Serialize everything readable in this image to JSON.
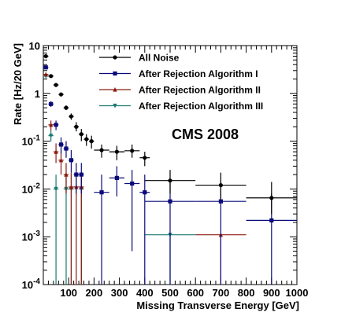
{
  "chart_data": {
    "type": "scatter",
    "title": "",
    "xlabel": "Missing Transverse Energy [GeV]",
    "ylabel": "Rate [Hz/20 GeV]",
    "xlim": [
      0,
      1000
    ],
    "ylim": [
      0.0001,
      10
    ],
    "yscale": "log",
    "grid": false,
    "legend_position": "top-center",
    "x_tick_labels": [
      "100",
      "200",
      "300",
      "400",
      "500",
      "600",
      "700",
      "800",
      "900",
      "1000"
    ],
    "y_tick_labels": [
      {
        "value": 0.0001,
        "base": "10",
        "exp": "-4"
      },
      {
        "value": 0.001,
        "base": "10",
        "exp": "-3"
      },
      {
        "value": 0.01,
        "base": "10",
        "exp": "-2"
      },
      {
        "value": 0.1,
        "base": "10",
        "exp": "-1"
      },
      {
        "value": 1,
        "base": "",
        "exp": "1"
      },
      {
        "value": 10,
        "base": "",
        "exp": "10"
      }
    ],
    "annotation": "CMS 2008",
    "series": [
      {
        "name": "All Noise",
        "color": "#000000",
        "marker": "circle",
        "points": [
          {
            "x": 10,
            "xerr": 10,
            "y": 6.0,
            "ylow": 6.0,
            "yhigh": 6.0
          },
          {
            "x": 30,
            "xerr": 10,
            "y": 2.3,
            "ylow": 2.3,
            "yhigh": 2.3
          },
          {
            "x": 50,
            "xerr": 10,
            "y": 1.5,
            "ylow": 1.45,
            "yhigh": 1.55
          },
          {
            "x": 70,
            "xerr": 10,
            "y": 0.95,
            "ylow": 0.88,
            "yhigh": 1.02
          },
          {
            "x": 90,
            "xerr": 10,
            "y": 0.5,
            "ylow": 0.45,
            "yhigh": 0.56
          },
          {
            "x": 110,
            "xerr": 10,
            "y": 0.33,
            "ylow": 0.28,
            "yhigh": 0.38
          },
          {
            "x": 130,
            "xerr": 10,
            "y": 0.2,
            "ylow": 0.16,
            "yhigh": 0.25
          },
          {
            "x": 150,
            "xerr": 10,
            "y": 0.14,
            "ylow": 0.1,
            "yhigh": 0.18
          },
          {
            "x": 170,
            "xerr": 10,
            "y": 0.11,
            "ylow": 0.08,
            "yhigh": 0.14
          },
          {
            "x": 190,
            "xerr": 10,
            "y": 0.1,
            "ylow": 0.07,
            "yhigh": 0.13
          },
          {
            "x": 230,
            "xerr": 30,
            "y": 0.065,
            "ylow": 0.045,
            "yhigh": 0.085
          },
          {
            "x": 290,
            "xerr": 30,
            "y": 0.06,
            "ylow": 0.04,
            "yhigh": 0.08
          },
          {
            "x": 350,
            "xerr": 30,
            "y": 0.063,
            "ylow": 0.045,
            "yhigh": 0.085
          },
          {
            "x": 400,
            "xerr": 20,
            "y": 0.045,
            "ylow": 0.03,
            "yhigh": 0.06
          },
          {
            "x": 500,
            "xerr": 100,
            "y": 0.015,
            "ylow": 0.008,
            "yhigh": 0.025
          },
          {
            "x": 700,
            "xerr": 100,
            "y": 0.012,
            "ylow": 0.006,
            "yhigh": 0.022
          },
          {
            "x": 900,
            "xerr": 100,
            "y": 0.0065,
            "ylow": 0.003,
            "yhigh": 0.014
          }
        ]
      },
      {
        "name": "After Rejection Algorithm I",
        "color": "#0a0a7a",
        "marker": "square",
        "points": [
          {
            "x": 10,
            "xerr": 10,
            "y": 3.5,
            "ylow": 3.3,
            "yhigh": 3.7
          },
          {
            "x": 30,
            "xerr": 10,
            "y": 0.6,
            "ylow": 0.52,
            "yhigh": 0.68
          },
          {
            "x": 50,
            "xerr": 10,
            "y": 0.22,
            "ylow": 0.17,
            "yhigh": 0.27
          },
          {
            "x": 70,
            "xerr": 10,
            "y": 0.085,
            "ylow": 0.055,
            "yhigh": 0.12
          },
          {
            "x": 90,
            "xerr": 10,
            "y": 0.07,
            "ylow": 0.045,
            "yhigh": 0.1
          },
          {
            "x": 110,
            "xerr": 10,
            "y": 0.04,
            "ylow": 0.022,
            "yhigh": 0.065
          },
          {
            "x": 130,
            "xerr": 10,
            "y": 0.02,
            "ylow": 0.008,
            "yhigh": 0.035
          },
          {
            "x": 150,
            "xerr": 10,
            "y": 0.02,
            "ylow": 0.008,
            "yhigh": 0.035
          },
          {
            "x": 230,
            "xerr": 30,
            "y": 0.0085,
            "ylow": 0.0001,
            "yhigh": 0.02
          },
          {
            "x": 290,
            "xerr": 30,
            "y": 0.017,
            "ylow": 0.007,
            "yhigh": 0.03
          },
          {
            "x": 350,
            "xerr": 30,
            "y": 0.013,
            "ylow": 0.0005,
            "yhigh": 0.025
          },
          {
            "x": 400,
            "xerr": 20,
            "y": 0.0085,
            "ylow": 0.0001,
            "yhigh": 0.02
          },
          {
            "x": 500,
            "xerr": 100,
            "y": 0.0055,
            "ylow": 0.0001,
            "yhigh": 0.015
          },
          {
            "x": 700,
            "xerr": 100,
            "y": 0.0055,
            "ylow": 0.0001,
            "yhigh": 0.015
          },
          {
            "x": 900,
            "xerr": 100,
            "y": 0.0022,
            "ylow": 0.0001,
            "yhigh": 0.008
          }
        ]
      },
      {
        "name": "After Rejection Algorithm II",
        "color": "#8c1a10",
        "marker": "triangle-up",
        "points": [
          {
            "x": 10,
            "xerr": 10,
            "y": 2.5,
            "ylow": 2.3,
            "yhigh": 2.7
          },
          {
            "x": 30,
            "xerr": 10,
            "y": 0.22,
            "ylow": 0.17,
            "yhigh": 0.27
          },
          {
            "x": 50,
            "xerr": 10,
            "y": 0.06,
            "ylow": 0.035,
            "yhigh": 0.09
          },
          {
            "x": 70,
            "xerr": 10,
            "y": 0.04,
            "ylow": 0.02,
            "yhigh": 0.065
          },
          {
            "x": 90,
            "xerr": 10,
            "y": 0.02,
            "ylow": 0.008,
            "yhigh": 0.035
          },
          {
            "x": 110,
            "xerr": 10,
            "y": 0.011,
            "ylow": 0.0001,
            "yhigh": 0.022
          },
          {
            "x": 130,
            "xerr": 10,
            "y": 0.011,
            "ylow": 0.0001,
            "yhigh": 0.022
          },
          {
            "x": 150,
            "xerr": 10,
            "y": 0.011,
            "ylow": 0.0001,
            "yhigh": 0.022
          },
          {
            "x": 700,
            "xerr": 100,
            "y": 0.0011,
            "ylow": 0.0001,
            "yhigh": 0.0011
          }
        ]
      },
      {
        "name": "After Rejection Algorithm III",
        "color": "#1a7a70",
        "marker": "triangle-down",
        "points": [
          {
            "x": 10,
            "xerr": 10,
            "y": 2.3,
            "ylow": 2.1,
            "yhigh": 2.5
          },
          {
            "x": 30,
            "xerr": 10,
            "y": 0.13,
            "ylow": 0.1,
            "yhigh": 0.17
          },
          {
            "x": 50,
            "xerr": 10,
            "y": 0.01,
            "ylow": 0.0001,
            "yhigh": 0.02
          },
          {
            "x": 90,
            "xerr": 10,
            "y": 0.01,
            "ylow": 0.0001,
            "yhigh": 0.02
          },
          {
            "x": 110,
            "xerr": 10,
            "y": 0.01,
            "ylow": 0.0001,
            "yhigh": 0.02
          },
          {
            "x": 150,
            "xerr": 10,
            "y": 0.01,
            "ylow": 0.0001,
            "yhigh": 0.02
          },
          {
            "x": 500,
            "xerr": 100,
            "y": 0.0011,
            "ylow": 0.0001,
            "yhigh": 0.0011
          }
        ]
      }
    ]
  }
}
